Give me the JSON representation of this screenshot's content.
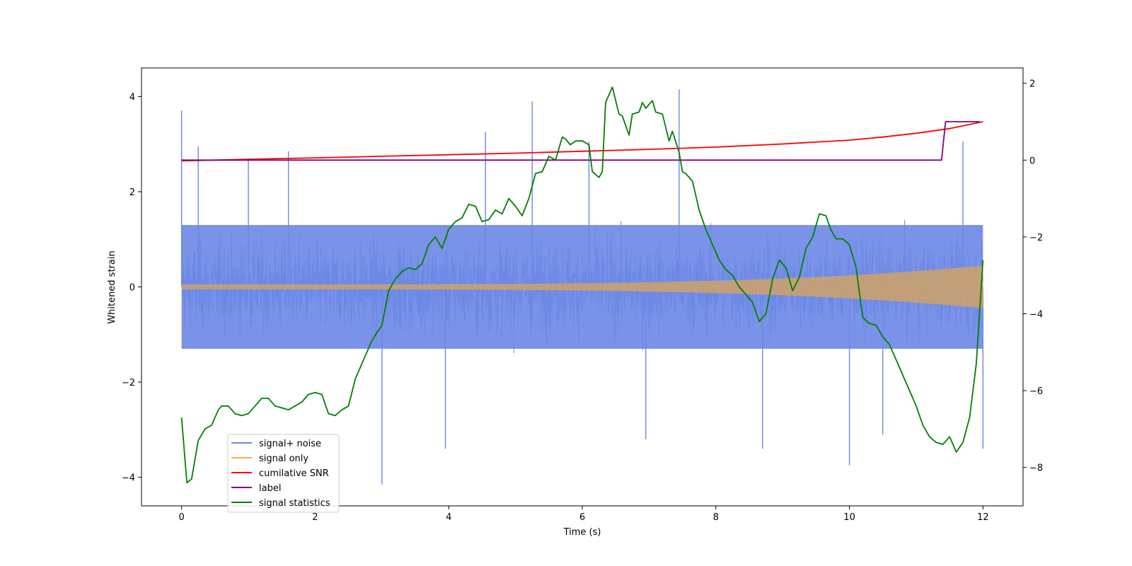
{
  "chart_data": {
    "type": "line",
    "title": "",
    "xlabel": "Time (s)",
    "ylabel": "Whitened strain",
    "y2label": "",
    "xlim": [
      -0.6,
      12.6
    ],
    "ylim": [
      -4.6,
      4.6
    ],
    "y2lim": [
      -9.0,
      2.4
    ],
    "xticks": [
      0,
      2,
      4,
      6,
      8,
      10,
      12
    ],
    "yticks": [
      -4,
      -2,
      0,
      2,
      4
    ],
    "y2ticks": [
      -8,
      -6,
      -4,
      -2,
      0,
      2
    ],
    "xtick_labels": [
      "0",
      "2",
      "4",
      "6",
      "8",
      "10",
      "12"
    ],
    "ytick_labels": [
      "−4",
      "−2",
      "0",
      "2",
      "4"
    ],
    "y2tick_labels": [
      "−8",
      "−6",
      "−4",
      "−2",
      "0",
      "2"
    ],
    "grid": false,
    "legend_position": "lower-left",
    "colors": {
      "signal_noise": "#6b87e6",
      "signal_only": "#f5b041",
      "cumulative_snr": "#ff0000",
      "label": "#800080",
      "signal_statistics": "#008000"
    },
    "series": [
      {
        "name": "signal+ noise",
        "axis": "left",
        "kind": "noise-band",
        "description_range": [
          -4.2,
          4.2
        ],
        "t_range": [
          0,
          12
        ],
        "band": [
          -1.3,
          1.3
        ],
        "spikes": [
          [
            0.0,
            3.7
          ],
          [
            0.25,
            2.95
          ],
          [
            1.0,
            2.7
          ],
          [
            1.6,
            2.85
          ],
          [
            3.0,
            -4.15
          ],
          [
            4.55,
            3.25
          ],
          [
            5.25,
            3.9
          ],
          [
            6.1,
            3.05
          ],
          [
            7.45,
            4.15
          ],
          [
            8.7,
            -3.4
          ],
          [
            10.0,
            -3.75
          ],
          [
            11.7,
            3.05
          ],
          [
            12.0,
            -3.4
          ],
          [
            3.95,
            -3.4
          ],
          [
            6.95,
            -3.2
          ],
          [
            10.5,
            -3.1
          ]
        ]
      },
      {
        "name": "signal only",
        "axis": "left",
        "kind": "chirp",
        "t_range": [
          0,
          12
        ],
        "amplitude_start": 0.05,
        "amplitude_end": 0.45
      },
      {
        "name": "cumilative SNR",
        "axis": "right",
        "x": [
          0,
          1,
          2,
          3,
          4,
          5,
          6,
          7,
          8,
          9,
          10,
          10.5,
          11,
          11.5,
          12
        ],
        "values": [
          -0.02,
          0.02,
          0.06,
          0.1,
          0.14,
          0.18,
          0.23,
          0.28,
          0.34,
          0.42,
          0.52,
          0.6,
          0.7,
          0.82,
          1.0
        ]
      },
      {
        "name": "label",
        "axis": "right",
        "x": [
          0,
          11.38,
          11.44,
          11.95
        ],
        "values": [
          0,
          0,
          1,
          1
        ]
      },
      {
        "name": "signal statistics",
        "axis": "right",
        "x": [
          0.0,
          0.08,
          0.15,
          0.25,
          0.35,
          0.45,
          0.55,
          0.6,
          0.7,
          0.8,
          0.9,
          1.0,
          1.1,
          1.2,
          1.3,
          1.4,
          1.5,
          1.6,
          1.7,
          1.8,
          1.9,
          2.0,
          2.1,
          2.2,
          2.3,
          2.4,
          2.5,
          2.6,
          2.7,
          2.75,
          2.85,
          2.92,
          3.0,
          3.1,
          3.2,
          3.3,
          3.4,
          3.5,
          3.6,
          3.7,
          3.8,
          3.9,
          4.0,
          4.1,
          4.2,
          4.3,
          4.4,
          4.5,
          4.6,
          4.7,
          4.8,
          4.9,
          5.0,
          5.1,
          5.2,
          5.3,
          5.4,
          5.5,
          5.6,
          5.7,
          5.75,
          5.82,
          5.9,
          6.0,
          6.1,
          6.15,
          6.25,
          6.3,
          6.35,
          6.45,
          6.5,
          6.55,
          6.6,
          6.7,
          6.75,
          6.85,
          6.9,
          6.95,
          7.05,
          7.1,
          7.2,
          7.3,
          7.35,
          7.45,
          7.5,
          7.55,
          7.65,
          7.75,
          7.85,
          7.95,
          8.05,
          8.15,
          8.25,
          8.35,
          8.45,
          8.55,
          8.65,
          8.75,
          8.85,
          8.95,
          9.05,
          9.15,
          9.25,
          9.35,
          9.45,
          9.55,
          9.65,
          9.72,
          9.8,
          9.9,
          10.0,
          10.1,
          10.2,
          10.3,
          10.4,
          10.5,
          10.6,
          10.7,
          10.8,
          10.9,
          11.0,
          11.1,
          11.2,
          11.3,
          11.4,
          11.5,
          11.6,
          11.7,
          11.8,
          11.9,
          12.0
        ],
        "values": [
          -6.7,
          -8.4,
          -8.3,
          -7.3,
          -7.0,
          -6.9,
          -6.5,
          -6.4,
          -6.4,
          -6.6,
          -6.65,
          -6.6,
          -6.4,
          -6.2,
          -6.2,
          -6.4,
          -6.45,
          -6.5,
          -6.4,
          -6.3,
          -6.1,
          -6.05,
          -6.1,
          -6.6,
          -6.65,
          -6.5,
          -6.4,
          -5.7,
          -5.3,
          -5.1,
          -4.7,
          -4.5,
          -4.3,
          -3.4,
          -3.1,
          -2.9,
          -2.8,
          -2.85,
          -2.7,
          -2.2,
          -2.0,
          -2.3,
          -1.8,
          -1.6,
          -1.5,
          -1.15,
          -1.2,
          -1.6,
          -1.55,
          -1.3,
          -1.4,
          -1.0,
          -1.2,
          -1.45,
          -1.0,
          -0.35,
          -0.3,
          0.1,
          0.0,
          0.6,
          0.55,
          0.4,
          0.5,
          0.5,
          0.4,
          -0.3,
          -0.45,
          -0.3,
          1.5,
          1.9,
          1.55,
          1.2,
          1.15,
          0.65,
          1.2,
          1.25,
          1.5,
          1.35,
          1.55,
          1.25,
          1.2,
          0.5,
          0.75,
          0.2,
          -0.3,
          -0.35,
          -0.55,
          -1.3,
          -1.8,
          -2.2,
          -2.6,
          -2.85,
          -3.0,
          -3.3,
          -3.5,
          -3.7,
          -4.2,
          -4.0,
          -3.1,
          -2.6,
          -2.8,
          -3.4,
          -3.05,
          -2.3,
          -2.0,
          -1.4,
          -1.45,
          -1.8,
          -2.05,
          -2.05,
          -2.2,
          -2.8,
          -4.1,
          -4.25,
          -4.3,
          -4.6,
          -4.8,
          -5.2,
          -5.6,
          -6.0,
          -6.4,
          -6.9,
          -7.2,
          -7.35,
          -7.4,
          -7.2,
          -7.6,
          -7.35,
          -6.7,
          -5.3,
          -2.6
        ]
      }
    ],
    "legend_entries": [
      "signal+ noise",
      "signal only",
      "cumilative SNR",
      "label",
      "signal statistics"
    ]
  }
}
